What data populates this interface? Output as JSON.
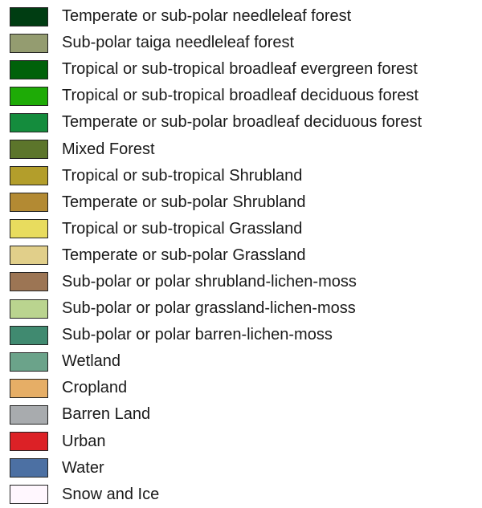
{
  "legend": {
    "items": [
      {
        "label": "Temperate or sub-polar needleleaf forest",
        "color": "#003d12"
      },
      {
        "label": "Sub-polar taiga needleleaf forest",
        "color": "#949c70"
      },
      {
        "label": "Tropical or sub-tropical broadleaf evergreen forest",
        "color": "#00610a"
      },
      {
        "label": "Tropical or sub-tropical broadleaf deciduous forest",
        "color": "#1eab06"
      },
      {
        "label": "Temperate or sub-polar broadleaf deciduous forest",
        "color": "#148c3d"
      },
      {
        "label": "Mixed Forest",
        "color": "#5c752b"
      },
      {
        "label": "Tropical or sub-tropical Shrubland",
        "color": "#b39e2b"
      },
      {
        "label": "Temperate or sub-polar Shrubland",
        "color": "#b38a33"
      },
      {
        "label": "Tropical or sub-tropical Grassland",
        "color": "#e8dc5e"
      },
      {
        "label": "Temperate or sub-polar Grassland",
        "color": "#e1cf8a"
      },
      {
        "label": "Sub-polar or polar shrubland-lichen-moss",
        "color": "#9c7554"
      },
      {
        "label": "Sub-polar or polar grassland-lichen-moss",
        "color": "#bad48f"
      },
      {
        "label": "Sub-polar or polar barren-lichen-moss",
        "color": "#408a70"
      },
      {
        "label": "Wetland",
        "color": "#6ba38a"
      },
      {
        "label": "Cropland",
        "color": "#e6ae66"
      },
      {
        "label": "Barren Land",
        "color": "#a8abae"
      },
      {
        "label": "Urban",
        "color": "#dc2126"
      },
      {
        "label": "Water",
        "color": "#4c70a3"
      },
      {
        "label": "Snow and Ice",
        "color": "#fff7fe"
      }
    ]
  }
}
